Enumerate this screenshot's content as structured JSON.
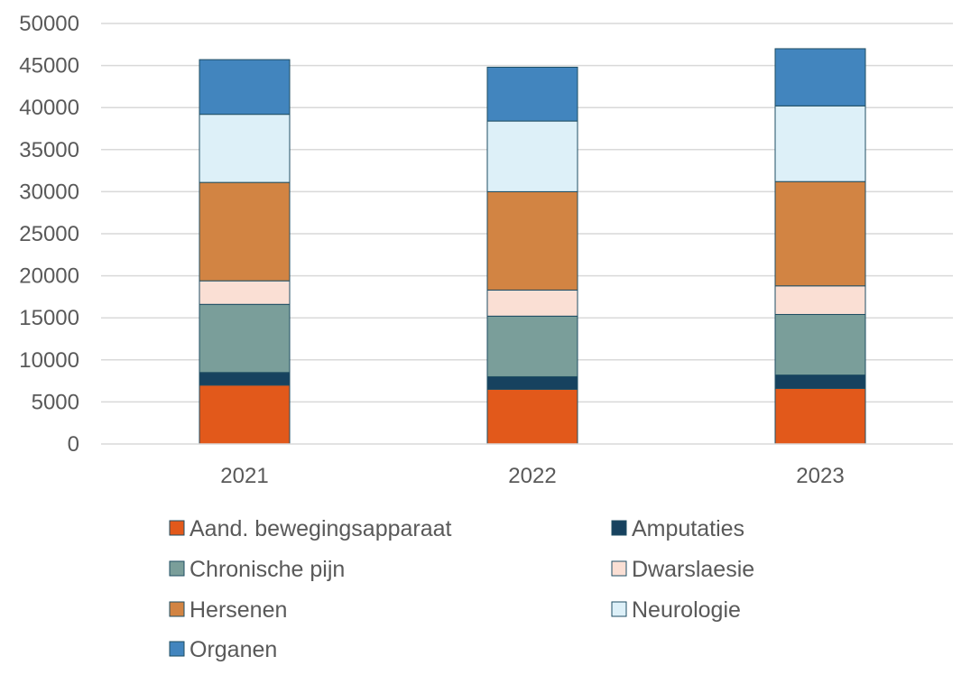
{
  "chart_data": {
    "type": "bar",
    "stacked": true,
    "categories": [
      "2021",
      "2022",
      "2023"
    ],
    "ylim": [
      0,
      50000
    ],
    "y_ticks": [
      "0",
      "5000",
      "10000",
      "15000",
      "20000",
      "25000",
      "30000",
      "35000",
      "40000",
      "45000",
      "50000"
    ],
    "grid": true,
    "legend_position": "bottom",
    "series": [
      {
        "name": "Aand. bewegingsapparaat",
        "color": "#E2591B",
        "values": [
          7000,
          6500,
          6600
        ]
      },
      {
        "name": "Amputaties",
        "color": "#17425F",
        "values": [
          1500,
          1500,
          1600
        ]
      },
      {
        "name": "Chronische pijn",
        "color": "#7A9E9A",
        "values": [
          8100,
          7200,
          7200
        ]
      },
      {
        "name": "Dwarslaesie",
        "color": "#FADFD4",
        "values": [
          2800,
          3100,
          3400
        ]
      },
      {
        "name": "Hersenen",
        "color": "#D28443",
        "values": [
          11700,
          11700,
          12400
        ]
      },
      {
        "name": "Neurologie",
        "color": "#DDF0F8",
        "values": [
          8100,
          8400,
          9000
        ]
      },
      {
        "name": "Organen",
        "color": "#4285BE",
        "values": [
          6500,
          6400,
          6800
        ]
      }
    ]
  }
}
